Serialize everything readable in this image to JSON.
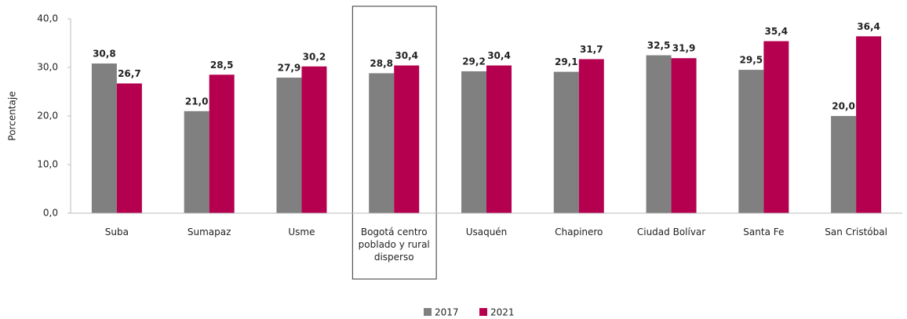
{
  "chart_data": {
    "type": "bar",
    "y_label": "Porcentaje",
    "categories": [
      "Suba",
      "Sumapaz",
      "Usme",
      "Bogotá centro poblado y rural disperso",
      "Usaquén",
      "Chapinero",
      "Ciudad Bolívar",
      "Santa Fe",
      "San Cristóbal"
    ],
    "series": [
      {
        "name": "2017",
        "color": "#808080",
        "values": [
          30.8,
          21.0,
          27.9,
          28.8,
          29.2,
          29.1,
          32.5,
          29.5,
          20.0
        ],
        "value_labels": [
          "30,8",
          "21,0",
          "27,9",
          "28,8",
          "29,2",
          "29,1",
          "32,5",
          "29,5",
          "20,0"
        ]
      },
      {
        "name": "2021",
        "color": "#b5004f",
        "values": [
          26.7,
          28.5,
          30.2,
          30.4,
          30.4,
          31.7,
          31.9,
          35.4,
          36.4
        ],
        "value_labels": [
          "26,7",
          "28,5",
          "30,2",
          "30,4",
          "30,4",
          "31,7",
          "31,9",
          "35,4",
          "36,4"
        ]
      }
    ],
    "ylim": [
      0,
      40
    ],
    "yticks": [
      {
        "value": 0,
        "label": "0,0"
      },
      {
        "value": 10,
        "label": "10,0"
      },
      {
        "value": 20,
        "label": "20,0"
      },
      {
        "value": 30,
        "label": "30,0"
      },
      {
        "value": 40,
        "label": "40,0"
      }
    ],
    "grid": false,
    "legend": "bottom"
  }
}
